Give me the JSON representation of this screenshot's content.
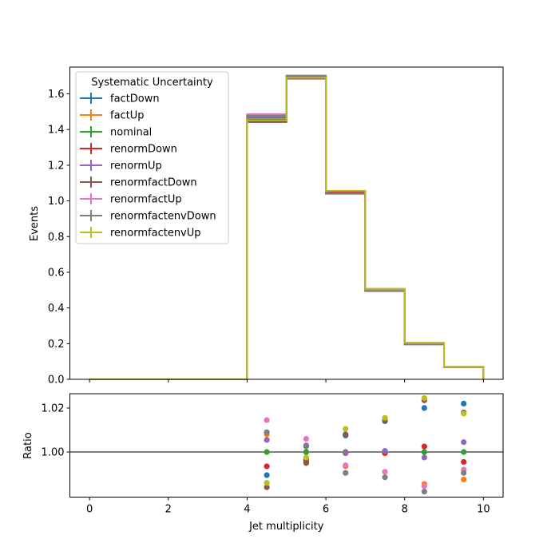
{
  "chart_data": [
    {
      "type": "line",
      "panel": "main",
      "ylabel": "Events",
      "xlabel": "",
      "xlim": [
        -0.5,
        10.5
      ],
      "ylim": [
        0.0,
        1.75
      ],
      "xticks": [
        0,
        2,
        4,
        6,
        8,
        10
      ],
      "yticks": [
        0.0,
        0.2,
        0.4,
        0.6,
        0.8,
        1.0,
        1.2,
        1.4,
        1.6
      ],
      "ytick_labels": [
        "0.0",
        "0.2",
        "0.4",
        "0.6",
        "0.8",
        "1.0",
        "1.2",
        "1.4",
        "1.6"
      ],
      "bin_edges": [
        0,
        1,
        2,
        3,
        4,
        5,
        6,
        7,
        8,
        9,
        10
      ],
      "legend": {
        "title": "Systematic Uncertainty",
        "placement": "top-left"
      },
      "series": [
        {
          "name": "factDown",
          "color": "#1f77b4",
          "values": [
            0,
            0,
            0,
            0,
            1.45,
            1.688,
            1.048,
            0.497,
            0.203,
            0.07
          ]
        },
        {
          "name": "factUp",
          "color": "#ff7f0e",
          "values": [
            0,
            0,
            0,
            0,
            1.477,
            1.693,
            1.04,
            0.497,
            0.197,
            0.068
          ]
        },
        {
          "name": "nominal",
          "color": "#2ca02c",
          "values": [
            0,
            0,
            0,
            0,
            1.465,
            1.693,
            1.047,
            0.5,
            0.2,
            0.069
          ]
        },
        {
          "name": "renormDown",
          "color": "#d62728",
          "values": [
            0,
            0,
            0,
            0,
            1.455,
            1.685,
            1.047,
            0.5,
            0.201,
            0.068
          ]
        },
        {
          "name": "renormUp",
          "color": "#9467bd",
          "values": [
            0,
            0,
            0,
            0,
            1.473,
            1.696,
            1.041,
            0.5,
            0.2,
            0.069
          ]
        },
        {
          "name": "renormfactDown",
          "color": "#8c564b",
          "values": [
            0,
            0,
            0,
            0,
            1.442,
            1.685,
            1.055,
            0.507,
            0.205,
            0.07
          ]
        },
        {
          "name": "renormfactUp",
          "color": "#e377c2",
          "values": [
            0,
            0,
            0,
            0,
            1.486,
            1.703,
            1.041,
            0.496,
            0.197,
            0.068
          ]
        },
        {
          "name": "renormfactenvDown",
          "color": "#7f7f7f",
          "values": [
            0,
            0,
            0,
            0,
            1.478,
            1.7,
            1.04,
            0.494,
            0.195,
            0.068
          ]
        },
        {
          "name": "renormfactenvUp",
          "color": "#bcbd22",
          "values": [
            0,
            0,
            0,
            0,
            1.452,
            1.69,
            1.057,
            0.507,
            0.205,
            0.07
          ]
        }
      ]
    },
    {
      "type": "scatter",
      "panel": "ratio",
      "xlabel": "Jet multiplicity",
      "ylabel": "Ratio",
      "xlim": [
        -0.5,
        10.5
      ],
      "ylim": [
        0.9795,
        1.0265
      ],
      "xticks": [
        0,
        2,
        4,
        6,
        8,
        10
      ],
      "yticks": [
        1.0,
        1.02
      ],
      "ytick_labels": [
        "1.00",
        "1.02"
      ],
      "reference_line": 1.0,
      "x": [
        4.5,
        5.5,
        6.5,
        7.5,
        8.5,
        9.5
      ],
      "series": [
        {
          "name": "factDown",
          "color": "#1f77b4",
          "values": [
            0.9895,
            0.9965,
            1.0075,
            1.014,
            1.02,
            1.022
          ]
        },
        {
          "name": "factUp",
          "color": "#ff7f0e",
          "values": [
            1.008,
            1.0,
            0.9935,
            0.9995,
            0.9855,
            0.9875
          ]
        },
        {
          "name": "nominal",
          "color": "#2ca02c",
          "values": [
            1.0,
            1.0,
            1.0,
            1.0,
            1.0,
            1.0
          ]
        },
        {
          "name": "renormDown",
          "color": "#d62728",
          "values": [
            0.9935,
            0.9955,
            0.9995,
            0.9995,
            1.0025,
            0.9955
          ]
        },
        {
          "name": "renormUp",
          "color": "#9467bd",
          "values": [
            1.0055,
            1.003,
            0.9995,
            1.0005,
            0.9975,
            1.0045
          ]
        },
        {
          "name": "renormfactDown",
          "color": "#8c564b",
          "values": [
            0.984,
            0.995,
            1.008,
            1.0145,
            1.0235,
            1.018
          ]
        },
        {
          "name": "renormfactUp",
          "color": "#e377c2",
          "values": [
            1.0145,
            1.006,
            0.994,
            0.991,
            0.9845,
            0.992
          ]
        },
        {
          "name": "renormfactenvDown",
          "color": "#7f7f7f",
          "values": [
            1.009,
            1.0025,
            0.9905,
            0.9885,
            0.982,
            0.9905
          ]
        },
        {
          "name": "renormfactenvUp",
          "color": "#bcbd22",
          "values": [
            0.986,
            0.9975,
            1.0105,
            1.0155,
            1.0245,
            1.0175
          ]
        }
      ]
    }
  ]
}
